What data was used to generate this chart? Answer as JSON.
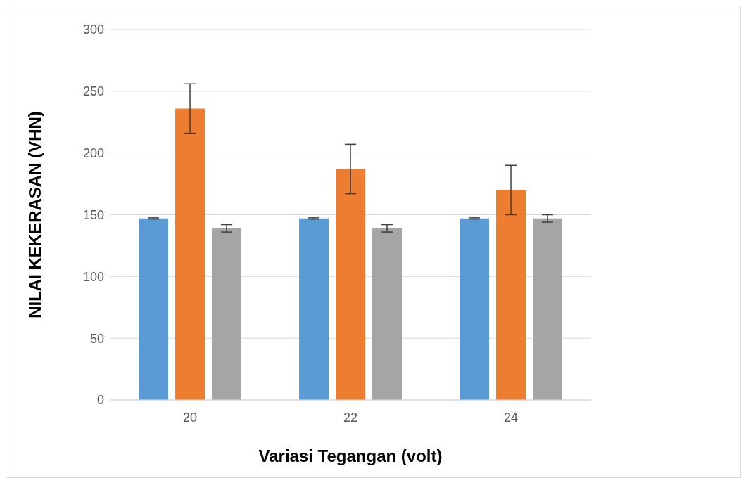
{
  "chart_data": {
    "type": "bar",
    "xlabel": "Variasi Tegangan (volt)",
    "ylabel": "NILAI KEKERASAN (VHN)",
    "categories": [
      "20",
      "22",
      "24"
    ],
    "series": [
      {
        "color": "#5b9bd5",
        "values": [
          147,
          147,
          147
        ],
        "errors": [
          0.5,
          0.5,
          0.5
        ]
      },
      {
        "color": "#ed7d31",
        "values": [
          236,
          187,
          170
        ],
        "errors": [
          20,
          20,
          20
        ]
      },
      {
        "color": "#a5a5a5",
        "values": [
          139,
          139,
          147
        ],
        "errors": [
          3,
          3,
          3
        ]
      }
    ],
    "ylim": [
      0,
      300
    ],
    "yticks": [
      0,
      50,
      100,
      150,
      200,
      250,
      300
    ],
    "grid": "y",
    "legend": false
  }
}
